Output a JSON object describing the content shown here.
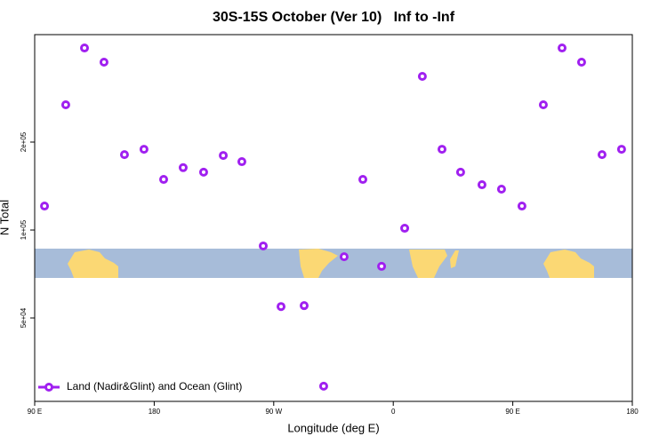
{
  "chart_data": {
    "type": "scatter",
    "title": "30S-15S October (Ver 10)   Inf to -Inf",
    "x_label": "Longitude (deg E)",
    "y_label": "N Total",
    "log_y": true,
    "legend_position": "bottom-left",
    "xlim": [
      90,
      540
    ],
    "xticks": [
      {
        "value": 90,
        "label": "90 E"
      },
      180,
      {
        "value": 270,
        "label": "90 W"
      },
      {
        "value": 360,
        "label": "0"
      },
      {
        "value": 450,
        "label": "90 E"
      },
      {
        "value": 540,
        "label": "180"
      }
    ],
    "ylim": [
      25900,
      466600
    ],
    "yticks": [
      {
        "value": 50000,
        "label": "5e+04"
      },
      {
        "value": 100000,
        "label": "1e+05"
      },
      {
        "value": 200000,
        "label": "2e+05"
      }
    ],
    "series": [
      {
        "name": "Land (Nadir&Glint) and Ocean (Glint)",
        "color": "#a020f0",
        "x": [
          97.4,
          113.4,
          127.5,
          142.2,
          157.6,
          172.3,
          187.1,
          201.8,
          217.2,
          232.0,
          246.0,
          262.1,
          275.5,
          292.9,
          307.6,
          323.0,
          337.1,
          351.2,
          368.6,
          381.9,
          396.7,
          410.7,
          426.8,
          441.5,
          456.9,
          473.0,
          487.1,
          501.8,
          517.2,
          531.9
        ],
        "values": [
          120800,
          268400,
          420000,
          375600,
          181200,
          189000,
          149000,
          163500,
          157800,
          180000,
          171400,
          88200,
          54700,
          55100,
          29200,
          81000,
          149000,
          75100,
          101400,
          335800,
          189000,
          157800,
          142900,
          138000,
          120800,
          268400,
          420000,
          375600,
          181200,
          189000
        ]
      }
    ]
  }
}
